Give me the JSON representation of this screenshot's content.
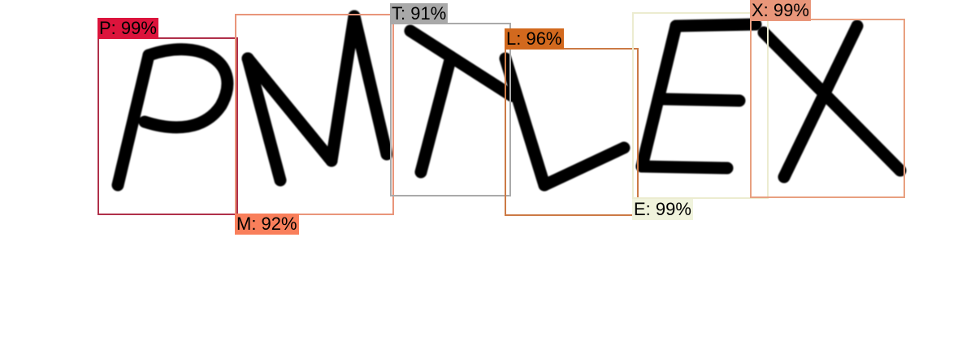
{
  "detections": [
    {
      "letter": "P",
      "label": "P: 99%",
      "confidence": 0.99,
      "color": "#b0304a",
      "label_bg": "#dc143c"
    },
    {
      "letter": "M",
      "label": "M: 92%",
      "confidence": 0.92,
      "color": "#e9957a",
      "label_bg": "#f97f5b"
    },
    {
      "letter": "T",
      "label": "T: 91%",
      "confidence": 0.91,
      "color": "#aaaaaa",
      "label_bg": "#a9a9a9"
    },
    {
      "letter": "L",
      "label": "L: 96%",
      "confidence": 0.96,
      "color": "#cc7a45",
      "label_bg": "#d2691e"
    },
    {
      "letter": "E",
      "label": "E: 99%",
      "confidence": 0.99,
      "color": "#ececd0",
      "label_bg": "#f0f3dc"
    },
    {
      "letter": "X",
      "label": "X: 99%",
      "confidence": 0.99,
      "color": "#e8a080",
      "label_bg": "#e9967a"
    }
  ]
}
